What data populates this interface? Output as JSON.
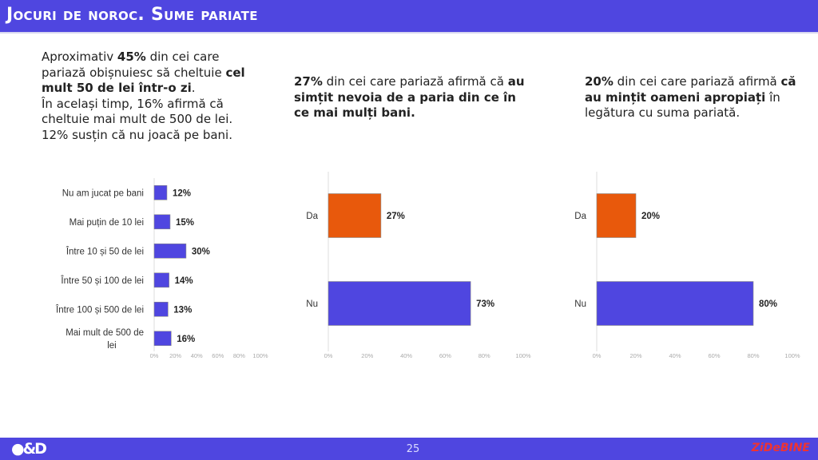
{
  "header": {
    "title": "Jocuri de noroc. Sume pariate"
  },
  "texts": {
    "t1": [
      {
        "t": "Aproximativ "
      },
      {
        "t": "45%",
        "b": true
      },
      {
        "t": " din cei care pariază obișnuiesc să cheltuie "
      },
      {
        "t": "cel mult 50 de lei într-o zi",
        "b": true
      },
      {
        "t": "."
      },
      {
        "br": true
      },
      {
        "t": "În același timp, 16% afirmă că cheltuie mai mult de 500 de lei."
      },
      {
        "br": true
      },
      {
        "t": "12% susțin că nu joacă pe bani."
      }
    ],
    "t2": [
      {
        "t": "27%",
        "b": true
      },
      {
        "t": " din cei care pariază afirmă că "
      },
      {
        "t": "au simțit nevoia de a paria din ce în ce mai mulți bani.",
        "b": true
      }
    ],
    "t3": [
      {
        "t": "20%",
        "b": true
      },
      {
        "t": " din cei care pariază afirmă "
      },
      {
        "t": "că au mințit oameni apropiați",
        "b": true
      },
      {
        "t": " în legătura cu suma pariată."
      }
    ]
  },
  "chart_data": [
    {
      "type": "bar",
      "orientation": "horizontal",
      "categories": [
        "Nu am jucat pe bani",
        "Mai puțin de 10 lei",
        "Între 10 și 50 de lei",
        "Între 50 și 100 de lei",
        "Între 100 și 500 de lei",
        "Mai mult de 500 de lei"
      ],
      "values": [
        12,
        15,
        30,
        14,
        13,
        16
      ],
      "labels": [
        "12%",
        "15%",
        "30%",
        "14%",
        "13%",
        "16%"
      ],
      "colors": [
        "#4f46e0",
        "#4f46e0",
        "#4f46e0",
        "#4f46e0",
        "#4f46e0",
        "#4f46e0"
      ],
      "xlim": [
        0,
        100
      ],
      "ticks": [
        "0%",
        "20%",
        "40%",
        "60%",
        "80%",
        "100%"
      ]
    },
    {
      "type": "bar",
      "orientation": "horizontal",
      "categories": [
        "Da",
        "Nu"
      ],
      "values": [
        27,
        73
      ],
      "labels": [
        "27%",
        "73%"
      ],
      "colors": [
        "#e8590c",
        "#4f46e0"
      ],
      "xlim": [
        0,
        100
      ],
      "ticks": [
        "0%",
        "20%",
        "40%",
        "60%",
        "80%",
        "100%"
      ]
    },
    {
      "type": "bar",
      "orientation": "horizontal",
      "categories": [
        "Da",
        "Nu"
      ],
      "values": [
        20,
        80
      ],
      "labels": [
        "20%",
        "80%"
      ],
      "colors": [
        "#e8590c",
        "#4f46e0"
      ],
      "xlim": [
        0,
        100
      ],
      "ticks": [
        "0%",
        "20%",
        "40%",
        "60%",
        "80%",
        "100%"
      ]
    }
  ],
  "footer": {
    "page": "25",
    "logo_left": "C&D",
    "logo_right": "ZiDeBINE"
  }
}
